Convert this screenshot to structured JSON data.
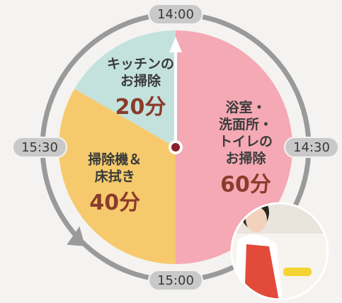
{
  "chart_data": {
    "type": "pie",
    "categories": [
      "浴室・\n洗面所・\nトイレの\nお掃除",
      "掃除機＆\n床拭き",
      "キッチンの\nお掃除"
    ],
    "values": [
      60,
      40,
      20
    ],
    "value_labels": [
      "60分",
      "40分",
      "20分"
    ],
    "colors": [
      "#f4a9b4",
      "#f6ca6c",
      "#c3e2de"
    ],
    "clock_labels": [
      "14:00",
      "14:30",
      "15:00",
      "15:30"
    ]
  }
}
